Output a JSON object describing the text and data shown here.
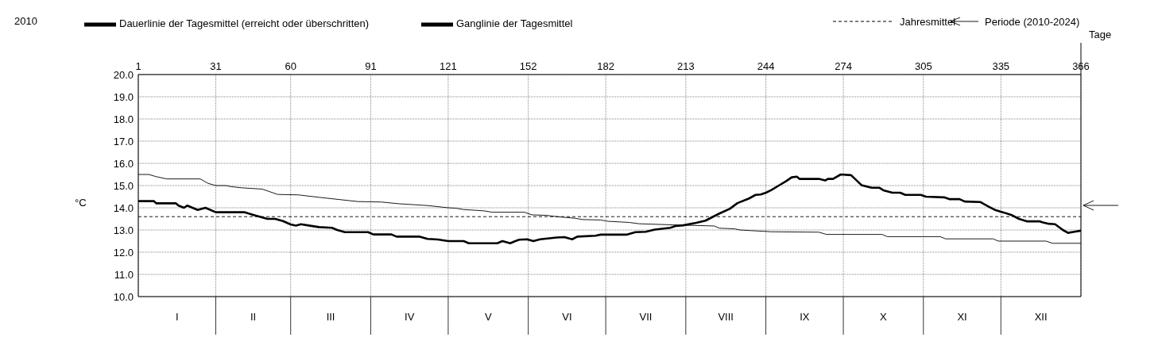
{
  "chart_data": {
    "type": "line",
    "title": "2010",
    "ylabel": "°C",
    "xlabel": "Tage",
    "legend": "top",
    "grid": true,
    "xlim": [
      1,
      366
    ],
    "xticks": [
      1,
      31,
      60,
      91,
      121,
      152,
      182,
      213,
      244,
      274,
      305,
      335,
      366
    ],
    "ylim": [
      10,
      20
    ],
    "yticks": [
      {
        "value": 10,
        "label": "10.0"
      },
      {
        "value": 11,
        "label": "11.0"
      },
      {
        "value": 12,
        "label": "12.0"
      },
      {
        "value": 13,
        "label": "13.0"
      },
      {
        "value": 14,
        "label": "14.0"
      },
      {
        "value": 15,
        "label": "15.0"
      },
      {
        "value": 16,
        "label": "16.0"
      },
      {
        "value": 17,
        "label": "17.0"
      },
      {
        "value": 18,
        "label": "18.0"
      },
      {
        "value": 19,
        "label": "19.0"
      },
      {
        "value": 20,
        "label": "20.0"
      }
    ],
    "series": [
      {
        "name": "Ganglinie der Tagesmittel",
        "color": "#000000",
        "line_style": "solid",
        "x": [
          1,
          7,
          8,
          15.6,
          16.6,
          18.7,
          20,
          24,
          27,
          31,
          42,
          45,
          48,
          51,
          54,
          57,
          60,
          62,
          64,
          67,
          71,
          76,
          78,
          81,
          90,
          92,
          99,
          101,
          110,
          113,
          117,
          121,
          127,
          129,
          140,
          142,
          145,
          147,
          148.5,
          151.5,
          154,
          156.6,
          163,
          166,
          169,
          171,
          178,
          180,
          190,
          193.5,
          197.5,
          201,
          207,
          209,
          212,
          217,
          220.6,
          226,
          230,
          233,
          237.5,
          240,
          242,
          244,
          246,
          249,
          252,
          254,
          256,
          257,
          264.5,
          267,
          268,
          270,
          273,
          277,
          281,
          285,
          288,
          289.5,
          293,
          296,
          298,
          304,
          306,
          313,
          315,
          319,
          321,
          327,
          330,
          333,
          336,
          339,
          342,
          345,
          350,
          351,
          353.5,
          356,
          359,
          361,
          363,
          366
        ],
        "values": [
          14.3,
          14.3,
          14.2,
          14.2,
          14.1,
          14.0,
          14.1,
          13.9,
          14.0,
          13.8,
          13.8,
          13.7,
          13.6,
          13.5,
          13.5,
          13.4,
          13.25,
          13.2,
          13.26,
          13.2,
          13.13,
          13.1,
          13.0,
          12.9,
          12.9,
          12.8,
          12.8,
          12.7,
          12.7,
          12.6,
          12.57,
          12.5,
          12.5,
          12.4,
          12.4,
          12.5,
          12.4,
          12.5,
          12.56,
          12.58,
          12.5,
          12.58,
          12.66,
          12.68,
          12.58,
          12.7,
          12.74,
          12.79,
          12.79,
          12.9,
          12.92,
          13.02,
          13.1,
          13.18,
          13.21,
          13.32,
          13.42,
          13.74,
          13.95,
          14.21,
          14.42,
          14.58,
          14.6,
          14.68,
          14.79,
          15.0,
          15.21,
          15.37,
          15.4,
          15.3,
          15.3,
          15.23,
          15.3,
          15.3,
          15.5,
          15.47,
          15.02,
          14.9,
          14.9,
          14.79,
          14.68,
          14.68,
          14.58,
          14.58,
          14.5,
          14.47,
          14.39,
          14.39,
          14.28,
          14.26,
          14.07,
          13.89,
          13.79,
          13.68,
          13.5,
          13.39,
          13.39,
          13.35,
          13.28,
          13.26,
          13.0,
          12.87,
          12.91,
          12.97
        ]
      },
      {
        "name": "Dauerlinie der Tagesmittel (erreicht oder überschritten)",
        "color": "#000000",
        "line_style": "solid",
        "x": [
          1,
          5,
          8,
          12,
          25,
          28,
          31,
          35,
          37,
          41,
          49,
          55,
          63,
          71,
          86,
          95,
          102,
          113,
          121,
          124,
          127,
          135,
          138,
          150.5,
          153.5,
          159,
          163,
          170,
          173,
          180,
          183,
          191,
          195,
          208,
          224,
          226,
          232,
          234,
          246,
          264.5,
          267.5,
          289,
          291,
          311.5,
          313.6,
          332,
          334,
          352.5,
          355,
          366
        ],
        "values": [
          15.5,
          15.5,
          15.4,
          15.3,
          15.3,
          15.1,
          15.0,
          15.0,
          14.95,
          14.9,
          14.84,
          14.6,
          14.58,
          14.47,
          14.28,
          14.26,
          14.18,
          14.1,
          14.0,
          13.98,
          13.92,
          13.86,
          13.8,
          13.8,
          13.68,
          13.66,
          13.6,
          13.53,
          13.47,
          13.45,
          13.39,
          13.34,
          13.28,
          13.23,
          13.18,
          13.08,
          13.05,
          13.0,
          12.92,
          12.9,
          12.8,
          12.8,
          12.7,
          12.7,
          12.6,
          12.6,
          12.5,
          12.5,
          12.4,
          12.4
        ]
      }
    ],
    "ref_lines": [
      {
        "axis": "y",
        "value": 13.6,
        "label": "Jahresmittel",
        "line_style": "dashed",
        "color": "#000000"
      }
    ],
    "annotations": [
      "I",
      "II",
      "III",
      "IV",
      "V",
      "VI",
      "VII",
      "VIII",
      "IX",
      "X",
      "XI",
      "XII",
      "Periode (2010-2024)"
    ]
  }
}
